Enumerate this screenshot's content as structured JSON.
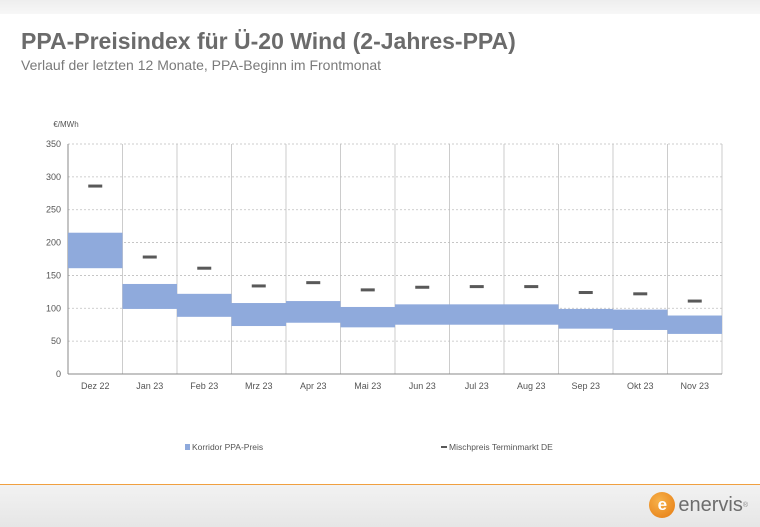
{
  "header": {
    "title": "PPA-Preisindex für Ü-20 Wind (2-Jahres-PPA)",
    "subtitle": "Verlauf der letzten 12 Monate, PPA-Beginn im Frontmonat"
  },
  "logo": {
    "initial": "e",
    "text": "enervis",
    "mark": "®",
    "accent": "#e8821e"
  },
  "colors": {
    "band": "#8faadc",
    "dash": "#595959",
    "grid": "#bfbfbf",
    "footer_line": "#f0a040"
  },
  "chart_data": {
    "type": "bar",
    "ylabel": "€/MWh",
    "ylim": [
      0,
      350
    ],
    "yticks": [
      0,
      50,
      100,
      150,
      200,
      250,
      300,
      350
    ],
    "grid": true,
    "legend_position": "bottom",
    "categories": [
      "Dez 22",
      "Jan 23",
      "Feb 23",
      "Mrz 23",
      "Apr 23",
      "Mai 23",
      "Jun 23",
      "Jul 23",
      "Aug 23",
      "Sep 23",
      "Okt 23",
      "Nov 23"
    ],
    "series": [
      {
        "name": "Korridor PPA-Preis",
        "type": "range",
        "low": [
          161,
          99,
          87,
          73,
          78,
          71,
          75,
          75,
          75,
          69,
          67,
          61
        ],
        "high": [
          215,
          137,
          122,
          108,
          111,
          102,
          106,
          106,
          106,
          99,
          98,
          89
        ]
      },
      {
        "name": "Mischpreis Terminmarkt DE",
        "type": "marker",
        "values": [
          286,
          178,
          161,
          134,
          139,
          128,
          132,
          133,
          133,
          124,
          122,
          111
        ]
      }
    ]
  }
}
